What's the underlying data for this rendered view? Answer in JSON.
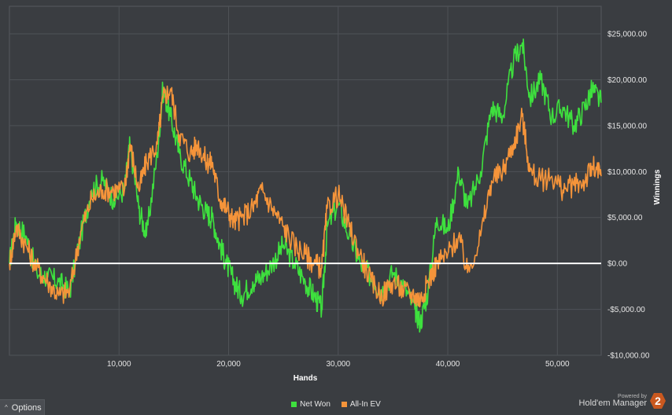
{
  "chart_data": {
    "type": "line",
    "title": "",
    "xlabel": "Hands",
    "ylabel": "Winnings",
    "xlim": [
      0,
      54000
    ],
    "ylim": [
      -10000,
      28000
    ],
    "x_ticks": [
      10000,
      20000,
      30000,
      40000,
      50000
    ],
    "x_tick_labels": [
      "10,000",
      "20,000",
      "30,000",
      "40,000",
      "50,000"
    ],
    "y_ticks": [
      -10000,
      -5000,
      0,
      5000,
      10000,
      15000,
      20000,
      25000
    ],
    "y_tick_labels": [
      "-$10,000.00",
      "-$5,000.00",
      "$0.00",
      "$5,000.00",
      "$10,000.00",
      "$15,000.00",
      "$20,000.00",
      "$25,000.00"
    ],
    "grid": true,
    "legend_position": "bottom-center",
    "series": [
      {
        "name": "Net Won",
        "color": "#3ee03e",
        "points": [
          [
            0,
            0
          ],
          [
            600,
            4500
          ],
          [
            1500,
            3000
          ],
          [
            2500,
            -1000
          ],
          [
            3500,
            -1500
          ],
          [
            4500,
            -2000
          ],
          [
            5500,
            -3000
          ],
          [
            6500,
            3000
          ],
          [
            7500,
            8000
          ],
          [
            8500,
            9000
          ],
          [
            9500,
            7000
          ],
          [
            10500,
            8000
          ],
          [
            11000,
            13000
          ],
          [
            11800,
            6000
          ],
          [
            12500,
            3000
          ],
          [
            13500,
            12000
          ],
          [
            14000,
            19000
          ],
          [
            14700,
            16000
          ],
          [
            15500,
            12000
          ],
          [
            16500,
            9000
          ],
          [
            17200,
            7000
          ],
          [
            18000,
            5500
          ],
          [
            18500,
            5000
          ],
          [
            19200,
            2000
          ],
          [
            19800,
            0
          ],
          [
            20500,
            -2000
          ],
          [
            21200,
            -3500
          ],
          [
            22200,
            -2000
          ],
          [
            23000,
            -1500
          ],
          [
            24000,
            0
          ],
          [
            25000,
            2000
          ],
          [
            26000,
            0
          ],
          [
            27000,
            -2000
          ],
          [
            27800,
            -3500
          ],
          [
            28500,
            -5000
          ],
          [
            29000,
            4000
          ],
          [
            30000,
            6500
          ],
          [
            31000,
            3000
          ],
          [
            32000,
            0
          ],
          [
            33000,
            -1500
          ],
          [
            34000,
            -3000
          ],
          [
            35000,
            -1000
          ],
          [
            36000,
            -2500
          ],
          [
            37000,
            -5000
          ],
          [
            37500,
            -6500
          ],
          [
            38200,
            -3000
          ],
          [
            39000,
            5000
          ],
          [
            40000,
            3500
          ],
          [
            41000,
            10000
          ],
          [
            41800,
            6000
          ],
          [
            43000,
            10000
          ],
          [
            44000,
            17000
          ],
          [
            45000,
            16000
          ],
          [
            46000,
            22000
          ],
          [
            46800,
            24000
          ],
          [
            47500,
            18000
          ],
          [
            48500,
            20000
          ],
          [
            49500,
            16000
          ],
          [
            50500,
            17000
          ],
          [
            51500,
            15000
          ],
          [
            52500,
            17000
          ],
          [
            53200,
            19000
          ],
          [
            54000,
            17500
          ]
        ]
      },
      {
        "name": "All-In EV",
        "color": "#f5943a",
        "points": [
          [
            0,
            0
          ],
          [
            600,
            4000
          ],
          [
            1500,
            2000
          ],
          [
            2500,
            -500
          ],
          [
            3500,
            -2000
          ],
          [
            4500,
            -3500
          ],
          [
            5500,
            -3000
          ],
          [
            6500,
            3500
          ],
          [
            7500,
            7000
          ],
          [
            8500,
            8000
          ],
          [
            9500,
            8000
          ],
          [
            10500,
            8000
          ],
          [
            11000,
            13000
          ],
          [
            11800,
            8000
          ],
          [
            12500,
            11000
          ],
          [
            13500,
            13000
          ],
          [
            14000,
            18000
          ],
          [
            14700,
            19000
          ],
          [
            15500,
            14000
          ],
          [
            16500,
            12000
          ],
          [
            17200,
            13000
          ],
          [
            18000,
            11000
          ],
          [
            18500,
            11000
          ],
          [
            19200,
            7000
          ],
          [
            19800,
            6000
          ],
          [
            20500,
            4500
          ],
          [
            21200,
            5000
          ],
          [
            22200,
            6000
          ],
          [
            23000,
            8000
          ],
          [
            24000,
            6000
          ],
          [
            25000,
            4000
          ],
          [
            26000,
            2000
          ],
          [
            27000,
            1000
          ],
          [
            27800,
            0
          ],
          [
            28500,
            -500
          ],
          [
            29000,
            6000
          ],
          [
            30000,
            7500
          ],
          [
            31000,
            4000
          ],
          [
            32000,
            1000
          ],
          [
            33000,
            -2000
          ],
          [
            34000,
            -3500
          ],
          [
            35000,
            -2000
          ],
          [
            36000,
            -3000
          ],
          [
            37000,
            -3500
          ],
          [
            37500,
            -4000
          ],
          [
            38200,
            -2000
          ],
          [
            39000,
            0
          ],
          [
            40000,
            1000
          ],
          [
            41000,
            3000
          ],
          [
            41800,
            -1000
          ],
          [
            43000,
            3000
          ],
          [
            44000,
            9000
          ],
          [
            45000,
            10000
          ],
          [
            46000,
            13000
          ],
          [
            46800,
            16000
          ],
          [
            47500,
            10000
          ],
          [
            48500,
            9000
          ],
          [
            49500,
            9500
          ],
          [
            50500,
            8000
          ],
          [
            51500,
            8500
          ],
          [
            52500,
            9000
          ],
          [
            53200,
            10500
          ],
          [
            54000,
            9500
          ]
        ]
      }
    ]
  },
  "ui": {
    "options_label": "Options",
    "options_caret": "^",
    "powered_by": "Powered by",
    "brand_name": "Hold'em Manager",
    "brand_logo": "2"
  }
}
